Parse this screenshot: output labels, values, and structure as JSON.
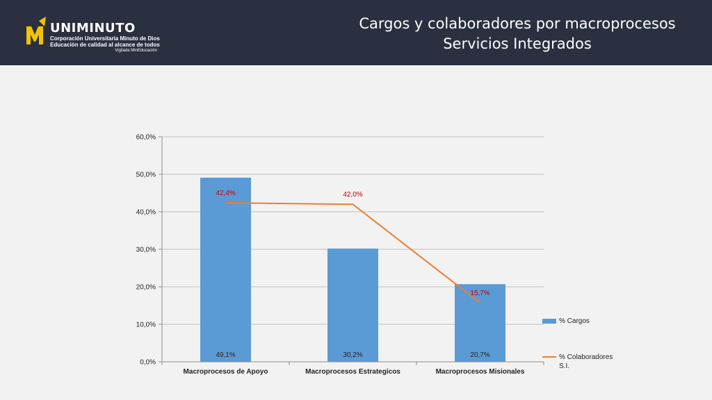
{
  "header": {
    "title_line1": "Cargos y colaboradores por macroprocesos",
    "title_line2": "Servicios Integrados",
    "logo": {
      "mark": "MD",
      "name": "UNIMINUTO",
      "line1": "Corporación Universitaria Minuto de Dios",
      "line2": "Educación de calidad al alcance de todos",
      "line3": "Vigilada MinEducación"
    }
  },
  "colors": {
    "header_bg": "#2b3040",
    "bar": "#5b9bd5",
    "line": "#ed7d31",
    "line_label": "#c00000",
    "logo_accent": "#f2c400"
  },
  "chart_data": {
    "type": "bar",
    "categories": [
      "Macroprocesos de Apoyo",
      "Macroprocesos Estrategicos",
      "Macroprocesos Misionales"
    ],
    "series": [
      {
        "name": "% Cargos",
        "type": "bar",
        "values": [
          49.1,
          30.2,
          20.7
        ],
        "labels": [
          "49,1%",
          "30,2%",
          "20,7%"
        ]
      },
      {
        "name": "% Colaboradores S.I.",
        "type": "line",
        "values": [
          42.4,
          42.0,
          15.7
        ],
        "labels": [
          "42,4%",
          "42,0%",
          "15,7%"
        ]
      }
    ],
    "yticks": [
      "0,0%",
      "10,0%",
      "20,0%",
      "30,0%",
      "40,0%",
      "50,0%",
      "60,0%"
    ],
    "ylim": [
      0,
      60
    ],
    "grid": true,
    "legend_position": "right"
  }
}
